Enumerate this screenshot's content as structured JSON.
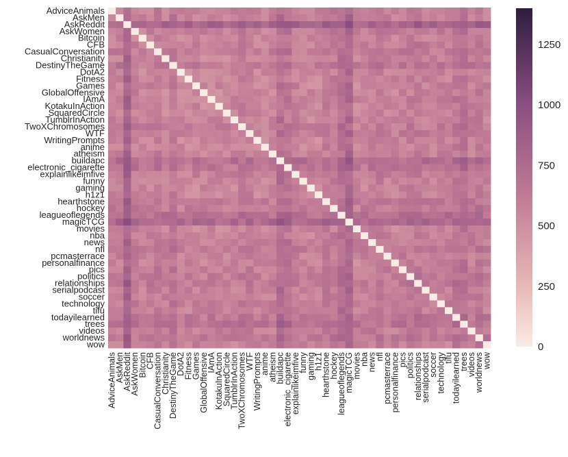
{
  "chart_data": {
    "type": "heatmap",
    "title": "",
    "xlabel": "",
    "ylabel": "",
    "rows": [
      "AdviceAnimals",
      "AskMen",
      "AskReddit",
      "AskWomen",
      "Bitcoin",
      "CFB",
      "CasualConversation",
      "Christianity",
      "DestinyTheGame",
      "DotA2",
      "Fitness",
      "Games",
      "GlobalOffensive",
      "IAmA",
      "KotakuInAction",
      "SquaredCircle",
      "TumblrInAction",
      "TwoXChromosomes",
      "WTF",
      "WritingPrompts",
      "anime",
      "atheism",
      "buildapc",
      "electronic_cigarette",
      "explainlikeimfive",
      "funny",
      "gaming",
      "h1z1",
      "hearthstone",
      "hockey",
      "leagueoflegends",
      "magicTCG",
      "movies",
      "nba",
      "news",
      "nfl",
      "pcmasterrace",
      "personalfinance",
      "pics",
      "politics",
      "relationships",
      "serialpodcast",
      "soccer",
      "technology",
      "tifu",
      "todayilearned",
      "trees",
      "videos",
      "worldnews",
      "wow"
    ],
    "columns": [
      "AdviceAnimals",
      "AskMen",
      "AskReddit",
      "AskWomen",
      "Bitcoin",
      "CFB",
      "CasualConversation",
      "Christianity",
      "DestinyTheGame",
      "DotA2",
      "Fitness",
      "Games",
      "GlobalOffensive",
      "IAmA",
      "KotakuInAction",
      "SquaredCircle",
      "TumblrInAction",
      "TwoXChromosomes",
      "WTF",
      "WritingPrompts",
      "anime",
      "atheism",
      "buildapc",
      "electronic_cigarette",
      "explainlikeimfive",
      "funny",
      "gaming",
      "h1z1",
      "hearthstone",
      "hockey",
      "leagueoflegends",
      "magicTCG",
      "movies",
      "nba",
      "news",
      "nfl",
      "pcmasterrace",
      "personalfinance",
      "pics",
      "politics",
      "relationships",
      "serialpodcast",
      "soccer",
      "technology",
      "tifu",
      "todayilearned",
      "trees",
      "videos",
      "worldnews",
      "wow"
    ],
    "values_note": "Pairwise values shown only by colour; diagonal is 0. Row/column values below are approximate means read from colour intensity.",
    "row_strength": [
      680,
      720,
      1180,
      720,
      650,
      700,
      760,
      660,
      820,
      640,
      650,
      650,
      640,
      680,
      660,
      640,
      660,
      720,
      720,
      640,
      640,
      680,
      980,
      860,
      720,
      660,
      640,
      660,
      780,
      760,
      960,
      1080,
      640,
      660,
      720,
      780,
      700,
      680,
      720,
      760,
      780,
      700,
      680,
      720,
      700,
      840,
      920,
      720,
      820,
      700
    ],
    "colorbar": {
      "min": 0,
      "max": 1400,
      "ticks": [
        0,
        250,
        500,
        750,
        1000,
        1250
      ]
    },
    "colors": {
      "low": "#faebe4",
      "mid": "#c2788f",
      "high": "#2d1e3e"
    },
    "grid": false,
    "legend": "colorbar-right"
  }
}
